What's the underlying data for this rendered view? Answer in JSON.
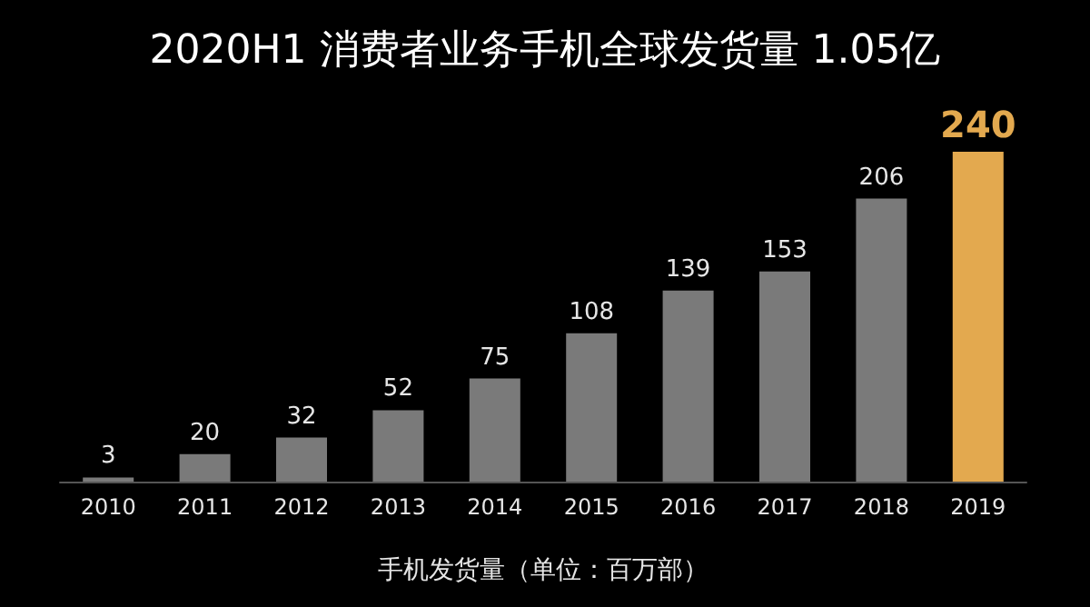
{
  "chart_data": {
    "type": "bar",
    "title": "2020H1 消费者业务手机全球发货量 1.05亿",
    "xlabel": "手机发货量（单位：百万部）",
    "categories": [
      "2010",
      "2011",
      "2012",
      "2013",
      "2014",
      "2015",
      "2016",
      "2017",
      "2018",
      "2019"
    ],
    "values": [
      3,
      20,
      32,
      52,
      75,
      108,
      139,
      153,
      206,
      240
    ],
    "colors": [
      "#7a7a7a",
      "#7a7a7a",
      "#7a7a7a",
      "#7a7a7a",
      "#7a7a7a",
      "#7a7a7a",
      "#7a7a7a",
      "#7a7a7a",
      "#7a7a7a",
      "#e3a94f"
    ],
    "data_labels": true
  }
}
